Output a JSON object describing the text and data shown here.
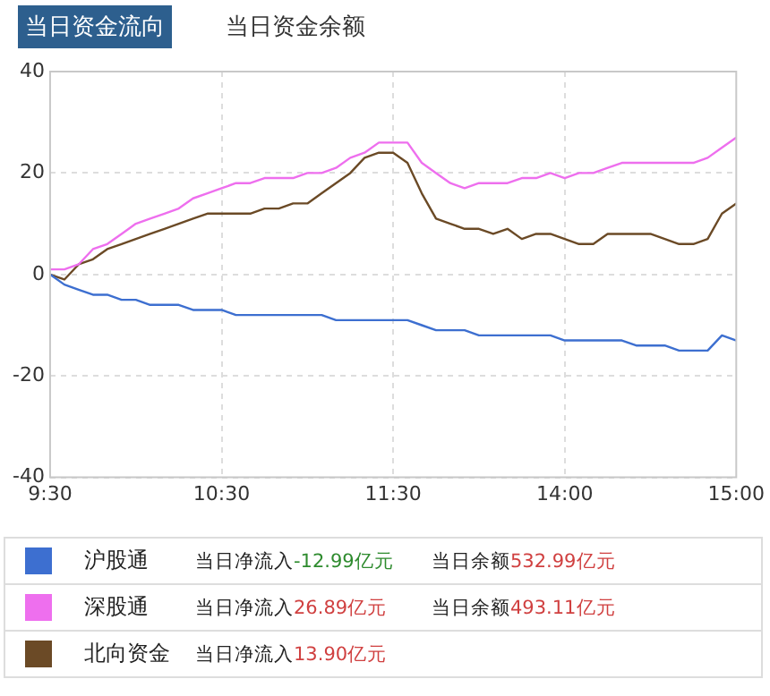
{
  "chart_data": {
    "type": "line",
    "title": "当日资金流向",
    "subtitle": "当日资金余额",
    "categories": [
      "9:30",
      null,
      null,
      null,
      null,
      null,
      null,
      null,
      null,
      null,
      null,
      null,
      "10:30",
      null,
      null,
      null,
      null,
      null,
      null,
      null,
      null,
      null,
      null,
      null,
      "11:30",
      null,
      null,
      null,
      null,
      null,
      null,
      null,
      null,
      null,
      null,
      null,
      "14:00",
      null,
      null,
      null,
      null,
      null,
      null,
      null,
      null,
      null,
      null,
      null,
      "15:00"
    ],
    "series": [
      {
        "name": "沪股通",
        "color": "#3d6fd0",
        "values": [
          0,
          -2,
          -3,
          -4,
          -4,
          -5,
          -5,
          -6,
          -6,
          -6,
          -7,
          -7,
          -7,
          -8,
          -8,
          -8,
          -8,
          -8,
          -8,
          -8,
          -9,
          -9,
          -9,
          -9,
          -9,
          -9,
          -10,
          -11,
          -11,
          -11,
          -12,
          -12,
          -12,
          -12,
          -12,
          -12,
          -13,
          -13,
          -13,
          -13,
          -13,
          -14,
          -14,
          -14,
          -15,
          -15,
          -15,
          -12,
          -13
        ]
      },
      {
        "name": "深股通",
        "color": "#ee6fee",
        "values": [
          1,
          1,
          2,
          5,
          6,
          8,
          10,
          11,
          12,
          13,
          15,
          16,
          17,
          18,
          18,
          19,
          19,
          19,
          20,
          20,
          21,
          23,
          24,
          26,
          26,
          26,
          22,
          20,
          18,
          17,
          18,
          18,
          18,
          19,
          19,
          20,
          19,
          20,
          20,
          21,
          22,
          22,
          22,
          22,
          22,
          22,
          23,
          25,
          27
        ]
      },
      {
        "name": "北向资金",
        "color": "#6b4a26",
        "values": [
          0,
          -1,
          2,
          3,
          5,
          6,
          7,
          8,
          9,
          10,
          11,
          12,
          12,
          12,
          12,
          13,
          13,
          14,
          14,
          16,
          18,
          20,
          23,
          24,
          24,
          22,
          16,
          11,
          10,
          9,
          9,
          8,
          9,
          7,
          8,
          8,
          7,
          6,
          6,
          8,
          8,
          8,
          8,
          7,
          6,
          6,
          7,
          12,
          14
        ]
      }
    ],
    "ylim": [
      -40,
      40
    ],
    "yticks": [
      -40,
      -20,
      0,
      20,
      40
    ],
    "grid": true,
    "legend": "bottom",
    "marker": "none",
    "line_style": "solid",
    "annotations": [
      "当日净流入-12.99亿元",
      "当日余额532.99亿元",
      "当日净流入26.89亿元",
      "当日余额493.11亿元",
      "当日净流入13.90亿元"
    ]
  }
}
